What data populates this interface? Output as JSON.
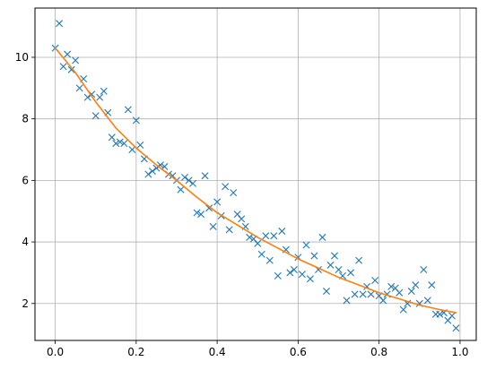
{
  "chart_data": {
    "type": "scatter",
    "title": "",
    "xlabel": "",
    "ylabel": "",
    "xlim": [
      -0.05,
      1.04
    ],
    "ylim": [
      0.8,
      11.6
    ],
    "grid": true,
    "legend": "none",
    "xticks": [
      {
        "value": 0.0,
        "label": "0.0"
      },
      {
        "value": 0.2,
        "label": "0.2"
      },
      {
        "value": 0.4,
        "label": "0.4"
      },
      {
        "value": 0.6,
        "label": "0.6"
      },
      {
        "value": 0.8,
        "label": "0.8"
      },
      {
        "value": 1.0,
        "label": "1.0"
      }
    ],
    "yticks": [
      {
        "value": 2,
        "label": "2"
      },
      {
        "value": 4,
        "label": "4"
      },
      {
        "value": 6,
        "label": "6"
      },
      {
        "value": 8,
        "label": "8"
      },
      {
        "value": 10,
        "label": "10"
      }
    ],
    "series": [
      {
        "kind": "scatter",
        "marker": "x",
        "color": "#1f77b4",
        "x": [
          0.0,
          0.01,
          0.02,
          0.03,
          0.04,
          0.05,
          0.06,
          0.07,
          0.08,
          0.09,
          0.1,
          0.11,
          0.12,
          0.13,
          0.14,
          0.15,
          0.16,
          0.17,
          0.18,
          0.19,
          0.2,
          0.21,
          0.22,
          0.23,
          0.24,
          0.25,
          0.26,
          0.27,
          0.28,
          0.29,
          0.3,
          0.31,
          0.32,
          0.33,
          0.34,
          0.35,
          0.36,
          0.37,
          0.38,
          0.39,
          0.4,
          0.41,
          0.42,
          0.43,
          0.44,
          0.45,
          0.46,
          0.47,
          0.48,
          0.49,
          0.5,
          0.51,
          0.52,
          0.53,
          0.54,
          0.55,
          0.56,
          0.57,
          0.58,
          0.59,
          0.6,
          0.61,
          0.62,
          0.63,
          0.64,
          0.65,
          0.66,
          0.67,
          0.68,
          0.69,
          0.7,
          0.71,
          0.72,
          0.73,
          0.74,
          0.75,
          0.76,
          0.77,
          0.78,
          0.79,
          0.8,
          0.81,
          0.82,
          0.83,
          0.84,
          0.85,
          0.86,
          0.87,
          0.88,
          0.89,
          0.9,
          0.91,
          0.92,
          0.93,
          0.94,
          0.95,
          0.96,
          0.97,
          0.98,
          0.99
        ],
        "y": [
          10.3,
          11.1,
          9.7,
          10.1,
          9.6,
          9.9,
          9.0,
          9.3,
          8.7,
          8.8,
          8.1,
          8.7,
          8.9,
          8.2,
          7.4,
          7.2,
          7.25,
          7.2,
          8.3,
          7.0,
          7.95,
          7.15,
          6.7,
          6.2,
          6.3,
          6.4,
          6.5,
          6.45,
          6.2,
          6.15,
          6.0,
          5.7,
          6.1,
          6.0,
          5.9,
          4.95,
          4.9,
          6.15,
          5.1,
          4.5,
          5.3,
          4.85,
          5.8,
          4.4,
          5.6,
          4.9,
          4.75,
          4.5,
          4.15,
          4.1,
          3.95,
          3.6,
          4.2,
          3.4,
          4.2,
          2.9,
          4.35,
          3.75,
          3.0,
          3.1,
          3.5,
          2.95,
          3.9,
          2.8,
          3.55,
          3.1,
          4.15,
          2.4,
          3.25,
          3.55,
          3.1,
          2.9,
          2.1,
          3.0,
          2.3,
          3.4,
          2.3,
          2.55,
          2.3,
          2.75,
          2.25,
          2.1,
          2.3,
          2.55,
          2.5,
          2.35,
          1.8,
          2.0,
          2.4,
          2.6,
          2.0,
          3.1,
          2.1,
          2.6,
          1.65,
          1.65,
          1.7,
          1.45,
          1.6,
          1.2
        ]
      },
      {
        "kind": "line",
        "color": "#ff7f0e",
        "x": [
          0.0,
          0.05,
          0.1,
          0.15,
          0.2,
          0.25,
          0.3,
          0.35,
          0.4,
          0.45,
          0.5,
          0.55,
          0.6,
          0.65,
          0.7,
          0.75,
          0.8,
          0.85,
          0.9,
          0.95,
          0.99
        ],
        "y": [
          10.3,
          9.5,
          8.55,
          7.7,
          7.05,
          6.5,
          6.0,
          5.45,
          4.95,
          4.55,
          4.15,
          3.8,
          3.45,
          3.15,
          2.85,
          2.6,
          2.35,
          2.15,
          1.95,
          1.8,
          1.7
        ]
      }
    ]
  }
}
